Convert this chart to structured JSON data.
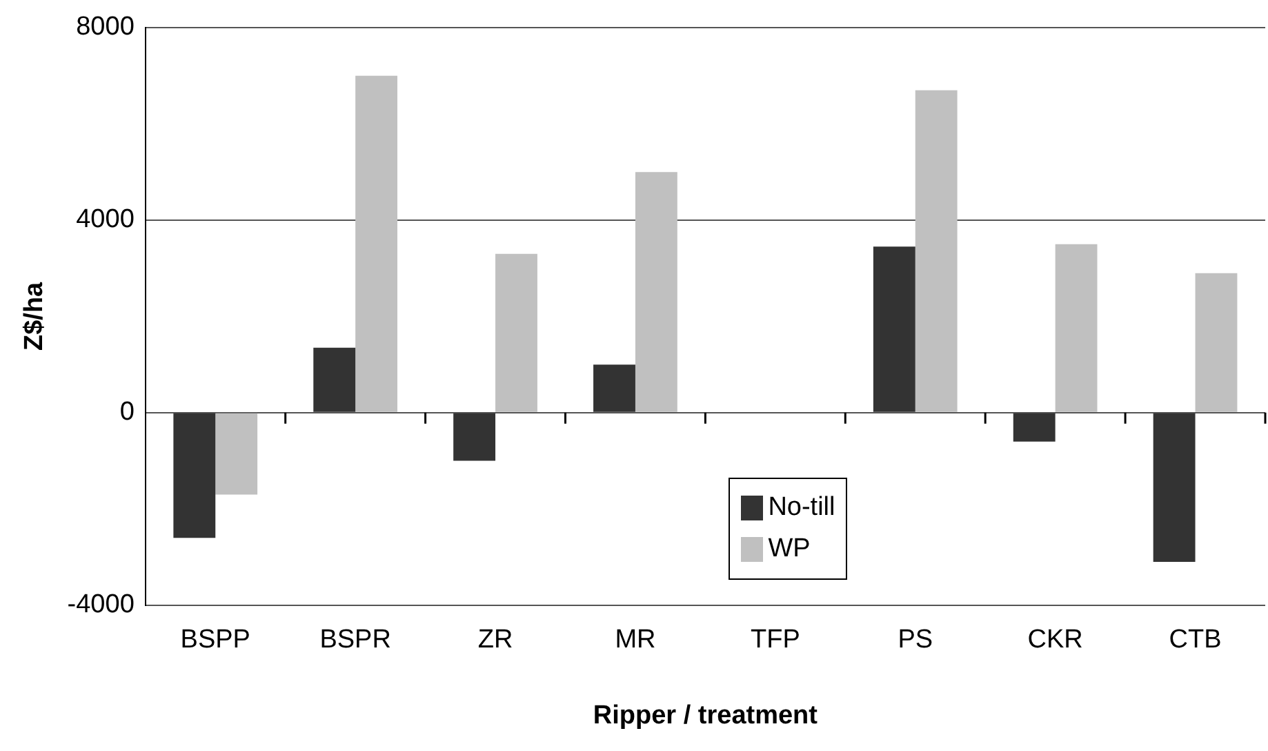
{
  "chart_data": {
    "type": "bar",
    "xlabel": "Ripper / treatment",
    "ylabel": "Z$/ha",
    "categories": [
      "BSPP",
      "BSPR",
      "ZR",
      "MR",
      "TFP",
      "PS",
      "CKR",
      "CTB"
    ],
    "series": [
      {
        "name": "No-till",
        "color": "#333333",
        "values": [
          -2600,
          1350,
          -1000,
          1000,
          null,
          3450,
          -600,
          -3100
        ]
      },
      {
        "name": "WP",
        "color": "#c0c0c0",
        "values": [
          -1700,
          7000,
          3300,
          5000,
          null,
          6700,
          3500,
          2900
        ]
      }
    ],
    "ylim": [
      -4000,
      8000
    ],
    "yticks": [
      -4000,
      0,
      4000,
      8000
    ],
    "grid": "y",
    "legend": "bottom"
  }
}
